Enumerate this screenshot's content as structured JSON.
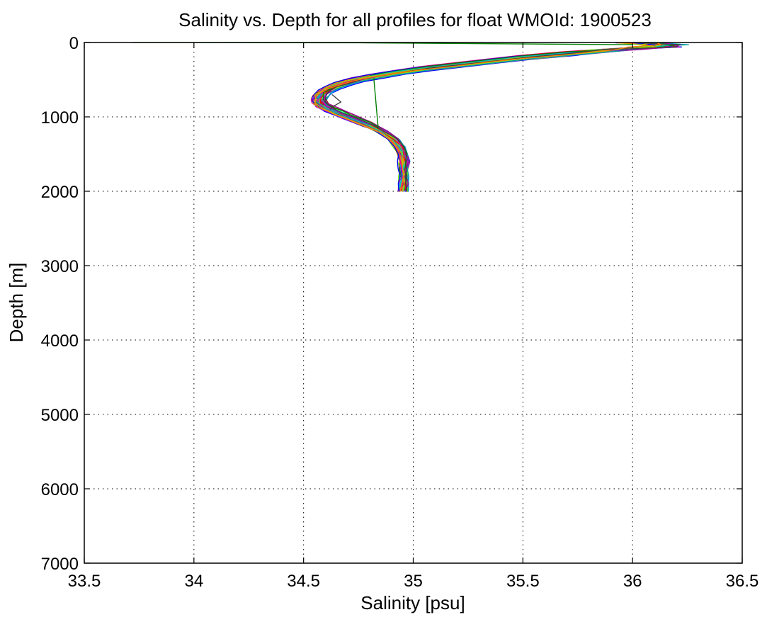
{
  "chart_data": {
    "type": "line",
    "title": "Salinity vs. Depth for all profiles for float WMOId: 1900523",
    "xlabel": "Salinity [psu]",
    "ylabel": "Depth [m]",
    "xlim": [
      33.5,
      36.5
    ],
    "ylim": [
      0,
      7000
    ],
    "y_reversed": true,
    "grid": "dotted",
    "x_ticks": [
      33.5,
      34,
      34.5,
      35,
      35.5,
      36,
      36.5
    ],
    "y_ticks": [
      0,
      1000,
      2000,
      3000,
      4000,
      5000,
      6000,
      7000
    ],
    "x_tick_labels": [
      "33.5",
      "34",
      "34.5",
      "35",
      "35.5",
      "36",
      "36.5"
    ],
    "y_tick_labels": [
      "0",
      "1000",
      "2000",
      "3000",
      "4000",
      "5000",
      "6000",
      "7000"
    ],
    "profile_count_shown": 40,
    "series_colors": [
      "#0000ff",
      "#ff0000",
      "#008000",
      "#00bfbf",
      "#bf00bf",
      "#bfbf00",
      "#404040",
      "#ff8000",
      "#8000ff",
      "#00ff80",
      "#ff0080",
      "#0080ff",
      "#80ff00",
      "#804000",
      "#00a0a0",
      "#a000a0"
    ],
    "mean_profile": {
      "depth": [
        5,
        30,
        60,
        100,
        150,
        200,
        250,
        300,
        350,
        400,
        450,
        500,
        550,
        600,
        650,
        700,
        750,
        800,
        850,
        900,
        950,
        1000,
        1100,
        1200,
        1300,
        1400,
        1500,
        1600,
        1700,
        1800,
        1900,
        2000
      ],
      "salinity": [
        36.05,
        36.15,
        36.1,
        35.9,
        35.7,
        35.5,
        35.35,
        35.2,
        35.05,
        34.93,
        34.83,
        34.74,
        34.68,
        34.63,
        34.6,
        34.58,
        34.57,
        34.57,
        34.59,
        34.62,
        34.66,
        34.7,
        34.79,
        34.86,
        34.91,
        34.94,
        34.955,
        34.96,
        34.96,
        34.96,
        34.96,
        34.955
      ]
    },
    "outliers": [
      {
        "color": "#008000",
        "depth": [
          0,
          5,
          30
        ],
        "salinity": [
          33.72,
          34.8,
          36.0
        ]
      },
      {
        "color": "#008000",
        "depth": [
          480,
          1150
        ],
        "salinity": [
          34.82,
          34.84
        ]
      },
      {
        "color": "#404040",
        "depth": [
          700,
          800,
          850,
          900
        ],
        "salinity": [
          34.63,
          34.67,
          34.64,
          34.62
        ]
      }
    ]
  }
}
